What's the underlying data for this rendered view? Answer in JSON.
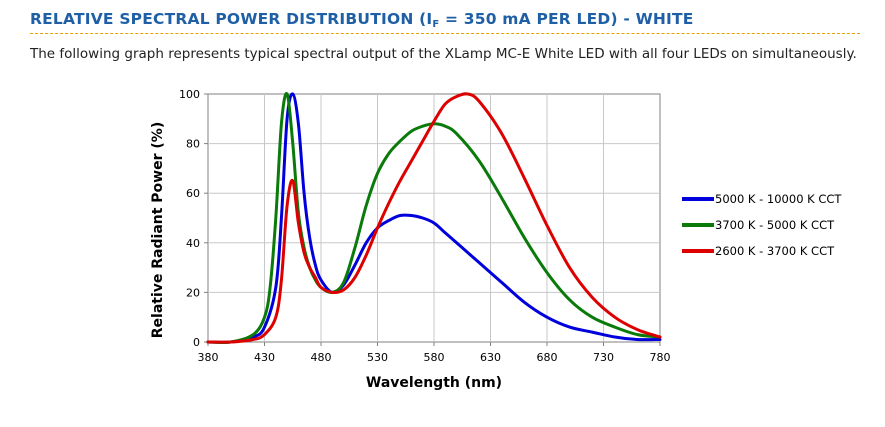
{
  "header": {
    "title_prefix": "RELATIVE SPECTRAL POWER DISTRIBUTION (I",
    "title_sub": "F",
    "title_suffix": " = 350 mA PER LED) - WHITE",
    "intro": "The following graph represents typical spectral output of the XLamp MC-E White LED with all four LEDs on simultaneously."
  },
  "colors": {
    "title": "#1f5fa6",
    "rule": "#e8a000"
  },
  "chart_data": {
    "type": "line",
    "title": "",
    "xlabel": "Wavelength (nm)",
    "ylabel": "Relative Radiant Power (%)",
    "xlim": [
      380,
      780
    ],
    "ylim": [
      0,
      100
    ],
    "x_ticks": [
      "380",
      "430",
      "480",
      "530",
      "580",
      "630",
      "680",
      "730",
      "780"
    ],
    "y_ticks": [
      "0",
      "20",
      "40",
      "60",
      "80",
      "100"
    ],
    "grid": true,
    "legend_position": "right",
    "series": [
      {
        "name": "5000 K - 10000 K CCT",
        "color": "#0000dd",
        "x": [
          380,
          400,
          420,
          430,
          440,
          445,
          450,
          455,
          460,
          465,
          470,
          475,
          480,
          490,
          500,
          510,
          520,
          530,
          540,
          550,
          560,
          570,
          580,
          590,
          600,
          620,
          640,
          660,
          680,
          700,
          720,
          740,
          760,
          780
        ],
        "y": [
          0,
          0,
          2,
          6,
          22,
          50,
          90,
          100,
          88,
          60,
          42,
          31,
          25,
          20,
          23,
          31,
          40,
          46,
          49,
          51,
          51,
          50,
          48,
          44,
          40,
          32,
          24,
          16,
          10,
          6,
          4,
          2,
          1,
          1
        ]
      },
      {
        "name": "3700 K - 5000 K CCT",
        "color": "#0a7a0a",
        "x": [
          380,
          400,
          420,
          430,
          435,
          440,
          445,
          450,
          455,
          460,
          465,
          470,
          475,
          480,
          490,
          500,
          510,
          520,
          530,
          540,
          550,
          560,
          570,
          580,
          590,
          600,
          620,
          640,
          660,
          680,
          700,
          720,
          740,
          760,
          780
        ],
        "y": [
          0,
          0,
          3,
          10,
          22,
          50,
          88,
          100,
          80,
          52,
          38,
          30,
          25,
          22,
          20,
          24,
          38,
          55,
          68,
          76,
          81,
          85,
          87,
          88,
          87,
          84,
          73,
          58,
          42,
          28,
          17,
          10,
          6,
          3,
          2
        ]
      },
      {
        "name": "2600 K - 3700 K CCT",
        "color": "#dd0000",
        "x": [
          380,
          400,
          420,
          430,
          440,
          445,
          450,
          455,
          460,
          465,
          470,
          475,
          480,
          490,
          500,
          510,
          520,
          530,
          540,
          550,
          560,
          570,
          580,
          590,
          600,
          610,
          620,
          640,
          660,
          680,
          700,
          720,
          740,
          760,
          780
        ],
        "y": [
          0,
          0,
          1,
          3,
          10,
          25,
          55,
          65,
          48,
          36,
          30,
          26,
          22,
          20,
          21,
          26,
          35,
          46,
          56,
          65,
          73,
          81,
          89,
          96,
          99,
          100,
          97,
          84,
          66,
          47,
          30,
          18,
          10,
          5,
          2
        ]
      }
    ]
  }
}
